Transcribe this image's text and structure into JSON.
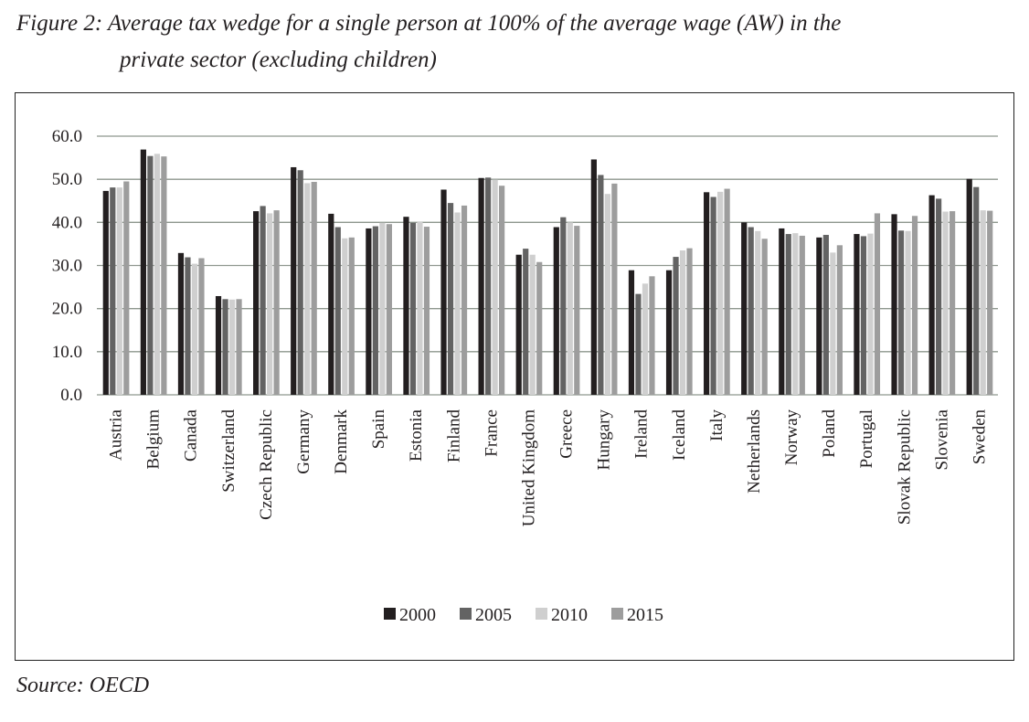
{
  "figure": {
    "caption_line1": "Figure 2: Average tax wedge for a single person at 100% of the average wage (AW) in the",
    "caption_line2": "private sector (excluding children)",
    "source": "Source: OECD"
  },
  "chart_data": {
    "type": "bar",
    "title": "Average tax wedge for a single person at 100% of the average wage (AW) in the private sector (excluding children)",
    "xlabel": "",
    "ylabel": "",
    "ylim": [
      0,
      60
    ],
    "yticks": [
      "0.0",
      "10.0",
      "20.0",
      "30.0",
      "40.0",
      "50.0",
      "60.0"
    ],
    "ytick_values": [
      0,
      10,
      20,
      30,
      40,
      50,
      60
    ],
    "grid": true,
    "legend_position": "bottom-center",
    "categories": [
      "Austria",
      "Belgium",
      "Canada",
      "Switzerland",
      "Czech Republic",
      "Germany",
      "Denmark",
      "Spain",
      "Estonia",
      "Finland",
      "France",
      "United Kingdom",
      "Greece",
      "Hungary",
      "Ireland",
      "Iceland",
      "Italy",
      "Netherlands",
      "Norway",
      "Poland",
      "Portugal",
      "Slovak Republic",
      "Slovenia",
      "Sweden"
    ],
    "series": [
      {
        "name": "2000",
        "color": "#231f20",
        "values": [
          47.3,
          56.9,
          32.9,
          22.9,
          42.6,
          52.8,
          42.0,
          38.6,
          41.3,
          47.6,
          50.3,
          32.5,
          38.9,
          54.6,
          28.9,
          28.9,
          47.0,
          40.0,
          38.6,
          36.5,
          37.3,
          41.9,
          46.3,
          50.1
        ]
      },
      {
        "name": "2005",
        "color": "#636363",
        "values": [
          48.1,
          55.4,
          31.9,
          22.2,
          43.8,
          52.1,
          38.9,
          39.1,
          39.9,
          44.5,
          50.4,
          33.9,
          41.2,
          51.0,
          23.4,
          32.0,
          45.9,
          38.9,
          37.3,
          37.1,
          36.8,
          38.1,
          45.5,
          48.2
        ]
      },
      {
        "name": "2010",
        "color": "#cfcfcf",
        "values": [
          48.1,
          55.9,
          30.4,
          22.1,
          42.1,
          49.1,
          36.3,
          39.9,
          40.1,
          42.3,
          49.9,
          32.5,
          40.0,
          46.6,
          25.8,
          33.5,
          47.1,
          38.0,
          37.5,
          33.0,
          37.4,
          38.0,
          42.5,
          42.8
        ]
      },
      {
        "name": "2015",
        "color": "#9d9d9d",
        "values": [
          49.5,
          55.3,
          31.7,
          22.2,
          42.8,
          49.4,
          36.5,
          39.6,
          39.0,
          43.9,
          48.5,
          30.8,
          39.2,
          49.0,
          27.5,
          34.0,
          47.8,
          36.2,
          36.9,
          34.7,
          42.1,
          41.5,
          42.6,
          42.7
        ]
      }
    ]
  }
}
